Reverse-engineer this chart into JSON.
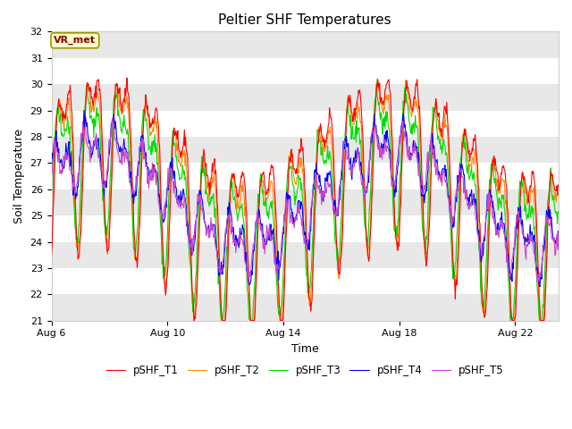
{
  "title": "Peltier SHF Temperatures",
  "xlabel": "Time",
  "ylabel": "Soil Temperature",
  "ylim": [
    21.0,
    32.0
  ],
  "yticks": [
    21.0,
    22.0,
    23.0,
    24.0,
    25.0,
    26.0,
    27.0,
    28.0,
    29.0,
    30.0,
    31.0,
    32.0
  ],
  "fig_bg_color": "#ffffff",
  "plot_bg_color": "#ffffff",
  "band_color_light": "#e8e8e8",
  "band_color_white": "#ffffff",
  "colors": {
    "pSHF_T1": "#ff0000",
    "pSHF_T2": "#ff8c00",
    "pSHF_T3": "#00dd00",
    "pSHF_T4": "#0000ff",
    "pSHF_T5": "#cc44cc"
  },
  "legend_label": "VR_met",
  "xtick_labels": [
    "Aug 6",
    "Aug 10",
    "Aug 14",
    "Aug 18",
    "Aug 22"
  ],
  "n_days": 17.5,
  "pts_per_day": 48,
  "seed": 42
}
